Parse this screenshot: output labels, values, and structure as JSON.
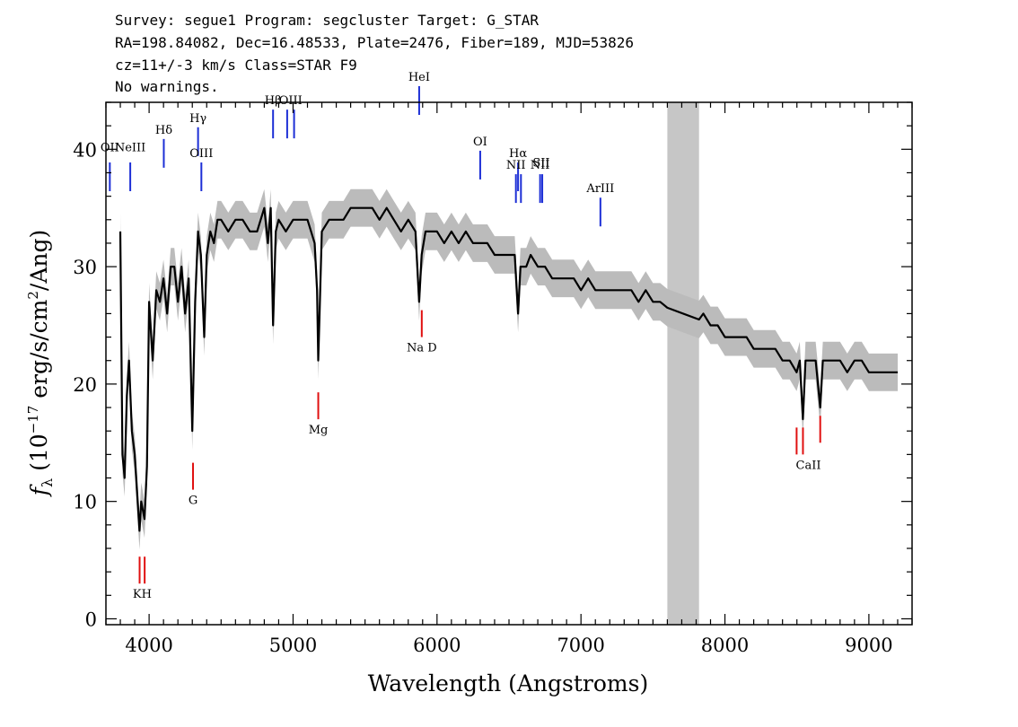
{
  "header": {
    "line1": "Survey: segue1 Program: segcluster Target: G_STAR",
    "line2": "RA=198.84082, Dec=16.48533, Plate=2476, Fiber=189, MJD=53826",
    "line3": "cz=11+/-3 km/s Class=STAR F9",
    "line4": "No warnings."
  },
  "chart_data": {
    "type": "line",
    "xlabel": "Wavelength (Angstroms)",
    "ylabel": "f_λ (10^-17 erg/s/cm^2/Ang)",
    "ylabel_parts": {
      "f": "f",
      "lambda": "λ",
      "open": " (10",
      "exp": "−17",
      "mid": " erg/s/cm",
      "sq": "2",
      "close": "/Ang)"
    },
    "xlim": [
      3700,
      9300
    ],
    "ylim": [
      -0.5,
      44
    ],
    "xticks": [
      4000,
      5000,
      6000,
      7000,
      8000,
      9000
    ],
    "yticks": [
      0,
      10,
      20,
      30,
      40
    ],
    "masked_region": [
      7600,
      7820
    ],
    "series": [
      {
        "color": "#000000",
        "x": [
          3800,
          3815,
          3830,
          3845,
          3860,
          3880,
          3900,
          3915,
          3933,
          3945,
          3968,
          3985,
          4000,
          4025,
          4050,
          4075,
          4100,
          4125,
          4150,
          4175,
          4200,
          4225,
          4250,
          4275,
          4300,
          4320,
          4340,
          4360,
          4383,
          4400,
          4425,
          4450,
          4475,
          4500,
          4550,
          4600,
          4650,
          4700,
          4750,
          4800,
          4825,
          4845,
          4861,
          4880,
          4900,
          4950,
          5000,
          5050,
          5100,
          5150,
          5167,
          5175,
          5184,
          5200,
          5250,
          5300,
          5350,
          5400,
          5450,
          5500,
          5550,
          5600,
          5650,
          5700,
          5750,
          5800,
          5850,
          5876,
          5893,
          5920,
          5950,
          6000,
          6050,
          6100,
          6150,
          6200,
          6250,
          6300,
          6350,
          6400,
          6450,
          6500,
          6540,
          6563,
          6580,
          6620,
          6650,
          6700,
          6750,
          6800,
          6850,
          6900,
          6950,
          7000,
          7050,
          7100,
          7150,
          7200,
          7250,
          7300,
          7350,
          7400,
          7450,
          7500,
          7550,
          7600,
          7820,
          7850,
          7900,
          7950,
          8000,
          8050,
          8100,
          8150,
          8200,
          8250,
          8300,
          8350,
          8400,
          8450,
          8498,
          8520,
          8542,
          8560,
          8600,
          8630,
          8662,
          8680,
          8700,
          8750,
          8800,
          8850,
          8900,
          8950,
          9000,
          9050,
          9100,
          9150,
          9200
        ],
        "y": [
          33,
          14,
          12,
          19,
          22,
          16,
          14,
          11,
          7.5,
          10,
          8.5,
          13,
          27,
          22,
          28,
          27,
          29,
          26,
          30,
          30,
          27,
          30,
          26,
          29,
          16,
          27,
          33,
          31,
          24,
          31,
          33,
          32,
          34,
          34,
          33,
          34,
          34,
          33,
          33,
          35,
          32,
          35,
          25,
          33,
          34,
          33,
          34,
          34,
          34,
          32,
          28,
          22,
          26,
          33,
          34,
          34,
          34,
          35,
          35,
          35,
          35,
          34,
          35,
          34,
          33,
          34,
          33,
          27,
          31,
          33,
          33,
          33,
          32,
          33,
          32,
          33,
          32,
          32,
          32,
          31,
          31,
          31,
          31,
          26,
          30,
          30,
          31,
          30,
          30,
          29,
          29,
          29,
          29,
          28,
          29,
          28,
          28,
          28,
          28,
          28,
          28,
          27,
          28,
          27,
          27,
          26.5,
          25.5,
          26,
          25,
          25,
          24,
          24,
          24,
          24,
          23,
          23,
          23,
          23,
          22,
          22,
          21,
          22,
          17,
          22,
          22,
          22,
          18,
          22,
          22,
          22,
          22,
          21,
          22,
          22,
          21,
          21,
          21,
          21,
          21
        ]
      }
    ],
    "error_band_color": "#bbbbbb",
    "spectral_lines": {
      "emission": [
        {
          "label": "OII",
          "x": 3727,
          "y": 37.5
        },
        {
          "label": "NeIII",
          "x": 3869,
          "y": 37.5
        },
        {
          "label": "Hδ",
          "x": 4102,
          "y": 39.5
        },
        {
          "label": "Hγ",
          "x": 4340,
          "y": 40.5
        },
        {
          "label": "OIII",
          "x": 4363,
          "y": 37.5
        },
        {
          "label": "Hβ",
          "x": 4861,
          "y": 42
        },
        {
          "label": "OIII",
          "x": 4959,
          "y": 42
        },
        {
          "label": "OIII",
          "x": 5007,
          "y": 42
        },
        {
          "label": "HeI",
          "x": 5876,
          "y": 44
        },
        {
          "label": "OI",
          "x": 6300,
          "y": 38.5
        },
        {
          "label": "NII",
          "x": 6548,
          "y": 36.5
        },
        {
          "label": "Hα",
          "x": 6563,
          "y": 37.5
        },
        {
          "label": "NII",
          "x": 6583,
          "y": 36.5
        },
        {
          "label": "SII",
          "x": 6716,
          "y": 36.5
        },
        {
          "label": "SII",
          "x": 6731,
          "y": 36.5
        },
        {
          "label": "ArIII",
          "x": 7135,
          "y": 34.5
        }
      ],
      "absorption": [
        {
          "label": "K",
          "x": 3934,
          "y": 3
        },
        {
          "label": "H",
          "x": 3969,
          "y": 3
        },
        {
          "label": "G",
          "x": 4305,
          "y": 11
        },
        {
          "label": "Mg",
          "x": 5175,
          "y": 17
        },
        {
          "label": "Na D",
          "x": 5894,
          "y": 24
        },
        {
          "label": "CaII",
          "x": 8498,
          "y": 14
        },
        {
          "label": "CaII",
          "x": 8542,
          "y": 14
        },
        {
          "label": "CaII",
          "x": 8662,
          "y": 15
        }
      ]
    },
    "line_label_groups": {
      "emission": [
        {
          "text": "OII",
          "x": 3727,
          "y": 38
        },
        {
          "text": "NeIII",
          "x": 3869,
          "y": 38
        },
        {
          "text": "Hδ",
          "x": 4102,
          "y": 39.5
        },
        {
          "text": "Hγ",
          "x": 4340,
          "y": 40.5
        },
        {
          "text": "OIII",
          "x": 4363,
          "y": 37.5
        },
        {
          "text": "Hβ",
          "x": 4861,
          "y": 42
        },
        {
          "text": "OIII",
          "x": 4983,
          "y": 42
        },
        {
          "text": "HeI",
          "x": 5876,
          "y": 44
        },
        {
          "text": "OI",
          "x": 6300,
          "y": 38.5
        },
        {
          "text": "NII",
          "x": 6548,
          "y": 36.5
        },
        {
          "text": "Hα",
          "x": 6563,
          "y": 37.5
        },
        {
          "text": "NII",
          "x": 6716,
          "y": 36.5
        },
        {
          "text": "SII",
          "x": 6724,
          "y": 36.7
        },
        {
          "text": "ArIII",
          "x": 7135,
          "y": 34.5
        }
      ],
      "absorption": [
        {
          "text": "KH",
          "x": 3952,
          "y": 3
        },
        {
          "text": "G",
          "x": 4305,
          "y": 11
        },
        {
          "text": "Mg",
          "x": 5175,
          "y": 17
        },
        {
          "text": "Na D",
          "x": 5894,
          "y": 24
        },
        {
          "text": "CaII",
          "x": 8580,
          "y": 14
        }
      ]
    }
  }
}
